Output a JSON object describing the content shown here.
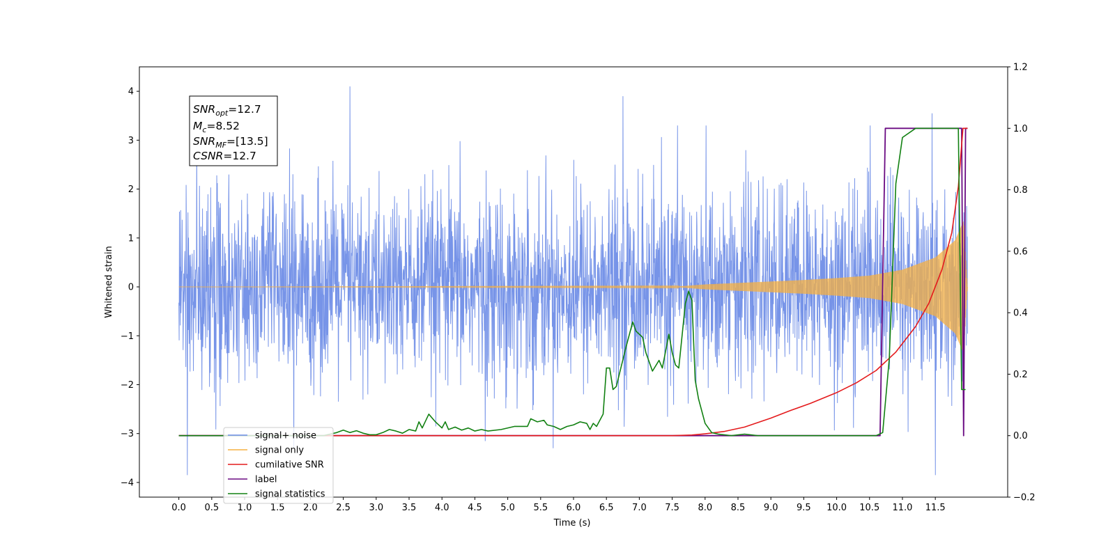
{
  "chart_data": {
    "type": "line",
    "xlabel": "Time (s)",
    "ylabel": "Whitened strain",
    "xlim": [
      -0.6,
      12.6
    ],
    "ylim": [
      -4.3,
      4.5
    ],
    "y2lim": [
      -0.2,
      1.2
    ],
    "x_ticks": [
      "0.0",
      "0.5",
      "1.0",
      "1.5",
      "2.0",
      "2.5",
      "3.0",
      "3.5",
      "4.0",
      "4.5",
      "5.0",
      "5.5",
      "6.0",
      "6.5",
      "7.0",
      "7.5",
      "8.0",
      "8.5",
      "9.0",
      "9.5",
      "10.0",
      "10.5",
      "11.0",
      "11.5"
    ],
    "y_ticks": [
      "−4",
      "−3",
      "−2",
      "−1",
      "0",
      "1",
      "2",
      "3",
      "4"
    ],
    "y2_ticks": [
      "−0.2",
      "0.0",
      "0.2",
      "0.4",
      "0.6",
      "0.8",
      "1.0",
      "1.2"
    ],
    "grid": false,
    "legend_position": "lower-left",
    "annotation": {
      "snr_opt": "12.7",
      "mc": "8.52",
      "snr_mf": "[13.5]",
      "csnr": "12.7"
    },
    "series": [
      {
        "name": "signal+ noise",
        "axis": "left",
        "color": "#6b8be6",
        "description": "whitened noise plus signal, dense random trace spanning roughly -2 to +2 with peaks near ±3.5 to 4",
        "t_range": [
          0.0,
          11.99
        ],
        "notable_peaks": [
          [
            0.13,
            -3.85
          ],
          [
            2.6,
            4.1
          ],
          [
            6.75,
            3.9
          ],
          [
            11.45,
            3.55
          ],
          [
            11.5,
            -3.85
          ]
        ]
      },
      {
        "name": "signal only",
        "axis": "left",
        "color": "#f5b041",
        "description": "chirp signal: flat near 0 until about 8.0 s then amplitude grows to about 1.3 near 11.9 s",
        "envelope": [
          [
            0.0,
            0.0
          ],
          [
            7.6,
            0.01
          ],
          [
            8.0,
            0.05
          ],
          [
            8.5,
            0.08
          ],
          [
            9.0,
            0.11
          ],
          [
            9.5,
            0.14
          ],
          [
            10.0,
            0.18
          ],
          [
            10.5,
            0.23
          ],
          [
            11.0,
            0.35
          ],
          [
            11.5,
            0.6
          ],
          [
            11.8,
            0.95
          ],
          [
            11.93,
            1.35
          ],
          [
            11.99,
            0.0
          ]
        ]
      },
      {
        "name": "cumilative SNR",
        "axis": "right",
        "color": "#e41a1c",
        "points": [
          [
            0.0,
            0.0
          ],
          [
            7.5,
            0.0
          ],
          [
            7.8,
            0.002
          ],
          [
            8.0,
            0.006
          ],
          [
            8.3,
            0.014
          ],
          [
            8.6,
            0.028
          ],
          [
            9.0,
            0.057
          ],
          [
            9.3,
            0.082
          ],
          [
            9.6,
            0.105
          ],
          [
            10.0,
            0.14
          ],
          [
            10.3,
            0.172
          ],
          [
            10.6,
            0.212
          ],
          [
            10.9,
            0.272
          ],
          [
            11.2,
            0.355
          ],
          [
            11.4,
            0.43
          ],
          [
            11.6,
            0.54
          ],
          [
            11.75,
            0.66
          ],
          [
            11.85,
            0.81
          ],
          [
            11.92,
            1.0
          ],
          [
            11.99,
            1.0
          ]
        ]
      },
      {
        "name": "label",
        "axis": "right",
        "color": "#6a0a82",
        "points": [
          [
            0.0,
            0.0
          ],
          [
            10.66,
            0.0
          ],
          [
            10.74,
            1.0
          ],
          [
            11.9,
            1.0
          ],
          [
            11.93,
            0.0
          ],
          [
            11.96,
            1.0
          ],
          [
            11.99,
            1.0
          ]
        ]
      },
      {
        "name": "signal statistics",
        "axis": "right",
        "color": "#118011",
        "points": [
          [
            0.0,
            0.0
          ],
          [
            2.2,
            0.0
          ],
          [
            2.3,
            0.005
          ],
          [
            2.4,
            0.01
          ],
          [
            2.5,
            0.018
          ],
          [
            2.6,
            0.01
          ],
          [
            2.7,
            0.016
          ],
          [
            2.8,
            0.008
          ],
          [
            2.9,
            0.003
          ],
          [
            3.0,
            0.003
          ],
          [
            3.1,
            0.01
          ],
          [
            3.2,
            0.02
          ],
          [
            3.3,
            0.015
          ],
          [
            3.4,
            0.008
          ],
          [
            3.5,
            0.02
          ],
          [
            3.6,
            0.015
          ],
          [
            3.65,
            0.045
          ],
          [
            3.7,
            0.025
          ],
          [
            3.8,
            0.07
          ],
          [
            3.9,
            0.045
          ],
          [
            4.0,
            0.025
          ],
          [
            4.05,
            0.045
          ],
          [
            4.1,
            0.02
          ],
          [
            4.2,
            0.028
          ],
          [
            4.3,
            0.018
          ],
          [
            4.4,
            0.025
          ],
          [
            4.5,
            0.015
          ],
          [
            4.6,
            0.02
          ],
          [
            4.7,
            0.015
          ],
          [
            4.9,
            0.02
          ],
          [
            5.1,
            0.03
          ],
          [
            5.3,
            0.03
          ],
          [
            5.35,
            0.055
          ],
          [
            5.45,
            0.045
          ],
          [
            5.55,
            0.05
          ],
          [
            5.6,
            0.035
          ],
          [
            5.7,
            0.03
          ],
          [
            5.8,
            0.02
          ],
          [
            5.9,
            0.03
          ],
          [
            6.0,
            0.035
          ],
          [
            6.1,
            0.045
          ],
          [
            6.2,
            0.04
          ],
          [
            6.25,
            0.02
          ],
          [
            6.3,
            0.04
          ],
          [
            6.35,
            0.03
          ],
          [
            6.45,
            0.07
          ],
          [
            6.5,
            0.22
          ],
          [
            6.55,
            0.22
          ],
          [
            6.6,
            0.15
          ],
          [
            6.65,
            0.16
          ],
          [
            6.8,
            0.29
          ],
          [
            6.9,
            0.37
          ],
          [
            6.95,
            0.34
          ],
          [
            7.05,
            0.32
          ],
          [
            7.1,
            0.27
          ],
          [
            7.2,
            0.21
          ],
          [
            7.3,
            0.245
          ],
          [
            7.35,
            0.22
          ],
          [
            7.45,
            0.33
          ],
          [
            7.5,
            0.27
          ],
          [
            7.55,
            0.23
          ],
          [
            7.6,
            0.22
          ],
          [
            7.7,
            0.43
          ],
          [
            7.75,
            0.47
          ],
          [
            7.8,
            0.44
          ],
          [
            7.85,
            0.18
          ],
          [
            7.9,
            0.12
          ],
          [
            8.0,
            0.04
          ],
          [
            8.1,
            0.01
          ],
          [
            8.2,
            0.005
          ],
          [
            8.4,
            0.0
          ],
          [
            8.6,
            0.005
          ],
          [
            8.8,
            0.0
          ],
          [
            10.6,
            0.0
          ],
          [
            10.7,
            0.01
          ],
          [
            10.8,
            0.25
          ],
          [
            10.9,
            0.82
          ],
          [
            11.0,
            0.97
          ],
          [
            11.2,
            1.0
          ],
          [
            11.5,
            1.0
          ],
          [
            11.85,
            1.0
          ],
          [
            11.9,
            0.15
          ],
          [
            11.96,
            0.15
          ]
        ]
      }
    ]
  }
}
